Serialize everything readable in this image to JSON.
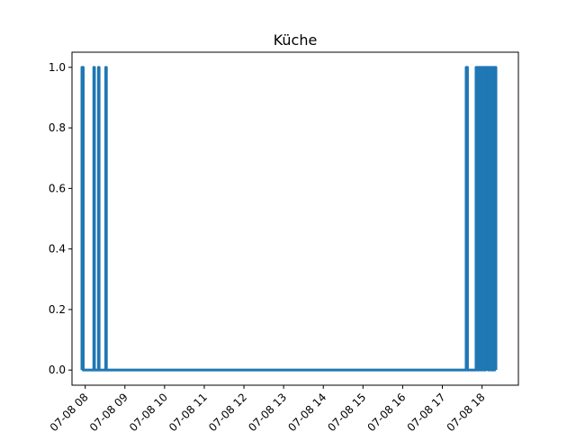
{
  "chart_data": {
    "type": "line",
    "title": "Küche",
    "xlabel": "",
    "ylabel": "",
    "line_color": "#1f77b4",
    "grid": false,
    "ylim": [
      -0.05,
      1.05
    ],
    "xlim": [
      "2023-07-08 07:40",
      "2023-07-08 18:55"
    ],
    "x_ticks": [
      {
        "value": "2023-07-08 08:00",
        "label": "07-08 08"
      },
      {
        "value": "2023-07-08 09:00",
        "label": "07-08 09"
      },
      {
        "value": "2023-07-08 10:00",
        "label": "07-08 10"
      },
      {
        "value": "2023-07-08 11:00",
        "label": "07-08 11"
      },
      {
        "value": "2023-07-08 12:00",
        "label": "07-08 12"
      },
      {
        "value": "2023-07-08 13:00",
        "label": "07-08 13"
      },
      {
        "value": "2023-07-08 14:00",
        "label": "07-08 14"
      },
      {
        "value": "2023-07-08 15:00",
        "label": "07-08 15"
      },
      {
        "value": "2023-07-08 16:00",
        "label": "07-08 16"
      },
      {
        "value": "2023-07-08 17:00",
        "label": "07-08 17"
      },
      {
        "value": "2023-07-08 18:00",
        "label": "07-08 18"
      }
    ],
    "y_ticks": [
      {
        "value": 0.0,
        "label": "0.0"
      },
      {
        "value": 0.2,
        "label": "0.2"
      },
      {
        "value": 0.4,
        "label": "0.4"
      },
      {
        "value": 0.6,
        "label": "0.6"
      },
      {
        "value": 0.8,
        "label": "0.8"
      },
      {
        "value": 1.0,
        "label": "1.0"
      }
    ],
    "series": [
      {
        "x": [
          "2023-07-08 07:55",
          "2023-07-08 07:55",
          "2023-07-08 07:57",
          "2023-07-08 07:57",
          "2023-07-08 08:13",
          "2023-07-08 08:13",
          "2023-07-08 08:14",
          "2023-07-08 08:14",
          "2023-07-08 08:20",
          "2023-07-08 08:20",
          "2023-07-08 08:21",
          "2023-07-08 08:21",
          "2023-07-08 08:31",
          "2023-07-08 08:31",
          "2023-07-08 08:32",
          "2023-07-08 08:32",
          "2023-07-08 17:36",
          "2023-07-08 17:36",
          "2023-07-08 17:38",
          "2023-07-08 17:38",
          "2023-07-08 17:51",
          "2023-07-08 17:51",
          "2023-07-08 17:53",
          "2023-07-08 17:53",
          "2023-07-08 17:55",
          "2023-07-08 17:55",
          "2023-07-08 17:58",
          "2023-07-08 17:58",
          "2023-07-08 18:00",
          "2023-07-08 18:00",
          "2023-07-08 18:03",
          "2023-07-08 18:03",
          "2023-07-08 18:05",
          "2023-07-08 18:05",
          "2023-07-08 18:10",
          "2023-07-08 18:10",
          "2023-07-08 18:11",
          "2023-07-08 18:11",
          "2023-07-08 18:14",
          "2023-07-08 18:14",
          "2023-07-08 18:16",
          "2023-07-08 18:16",
          "2023-07-08 18:18",
          "2023-07-08 18:18",
          "2023-07-08 18:19",
          "2023-07-08 18:19",
          "2023-07-08 18:21",
          "2023-07-08 18:21"
        ],
        "y": [
          0,
          1,
          1,
          0,
          0,
          1,
          1,
          0,
          0,
          1,
          1,
          0,
          0,
          1,
          1,
          0,
          0,
          1,
          1,
          0,
          0,
          1,
          1,
          0,
          0,
          1,
          1,
          0,
          0,
          1,
          1,
          0,
          0,
          1,
          1,
          0,
          0,
          1,
          1,
          0,
          0,
          1,
          1,
          0,
          0,
          1,
          1,
          0
        ],
        "fill_to_zero": [
          {
            "from": "2023-07-08 17:51",
            "to": "2023-07-08 18:21"
          }
        ]
      }
    ]
  }
}
